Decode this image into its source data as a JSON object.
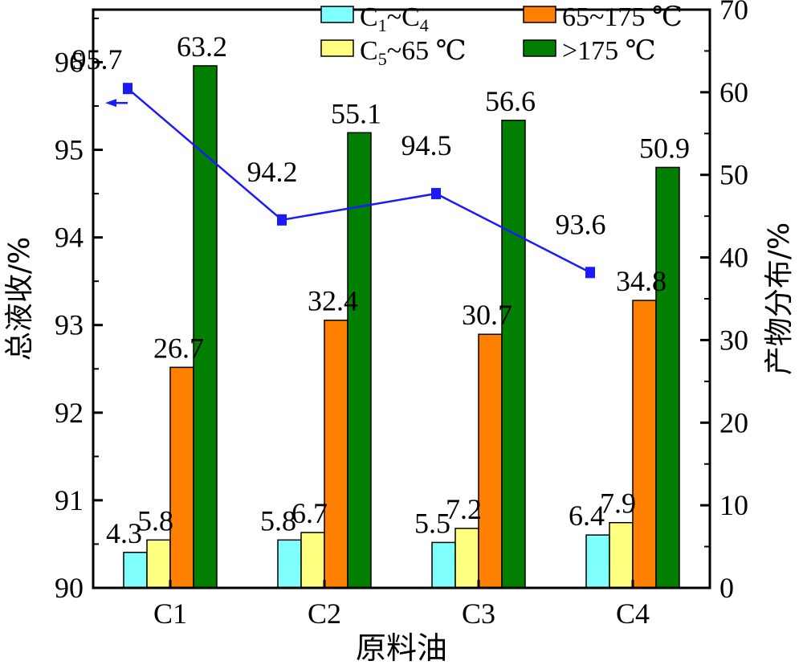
{
  "chart_data": {
    "type": "bar",
    "categories": [
      "C1",
      "C2",
      "C3",
      "C4"
    ],
    "xlabel": "原料油",
    "ylabel_left": "总液收/%",
    "ylabel_right": "产物分布/%",
    "ylim_left": [
      90,
      96.6
    ],
    "ylim_right": [
      0,
      70
    ],
    "left_ticks": [
      90,
      91,
      92,
      93,
      94,
      95,
      96
    ],
    "right_ticks": [
      0,
      10,
      20,
      30,
      40,
      50,
      60,
      70
    ],
    "series": [
      {
        "name": "C1~C4",
        "axis": "right",
        "color": "#80ffff",
        "values": [
          4.3,
          5.8,
          5.5,
          6.4
        ]
      },
      {
        "name": "C5~65 ℃",
        "axis": "right",
        "color": "#ffff80",
        "values": [
          5.8,
          6.7,
          7.2,
          7.9
        ]
      },
      {
        "name": "65~175 ℃",
        "axis": "right",
        "color": "#ff7f00",
        "values": [
          26.7,
          32.4,
          30.7,
          34.8
        ]
      },
      {
        "name": ">175 ℃",
        "axis": "right",
        "color": "#007f00",
        "values": [
          63.2,
          55.1,
          56.6,
          50.9
        ]
      }
    ],
    "line": {
      "axis": "left",
      "color": "#1a1aff",
      "values": [
        95.7,
        94.2,
        94.5,
        93.6
      ]
    },
    "legend": {
      "placement": "top",
      "entries": [
        {
          "main": "C",
          "sub": "1",
          "rest": "~C",
          "sub2": "4",
          "color": "#80ffff"
        },
        {
          "main": "65~175 ℃",
          "color": "#ff7f00"
        },
        {
          "main": "C",
          "sub": "5",
          "rest": "~65 ℃",
          "color": "#ffff80"
        },
        {
          "main": ">175 ℃",
          "color": "#007f00"
        }
      ]
    }
  }
}
